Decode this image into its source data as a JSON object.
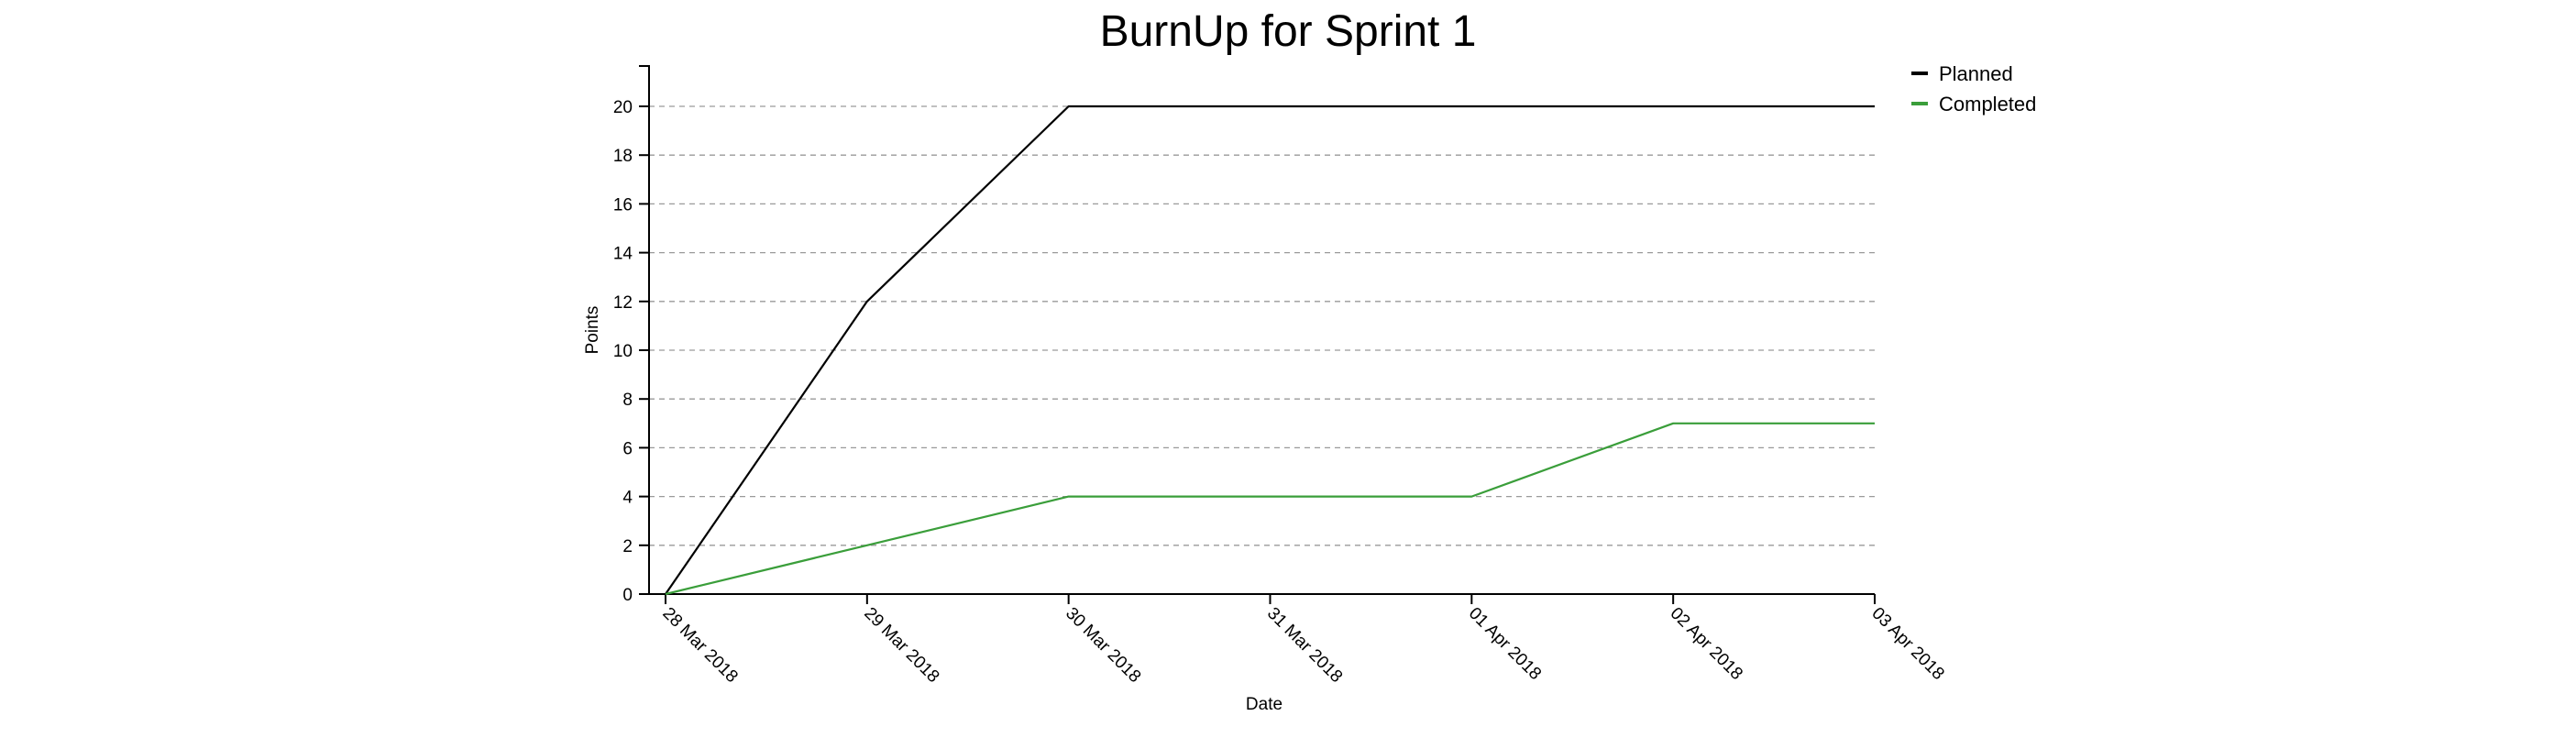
{
  "chart_data": {
    "type": "line",
    "title": "BurnUp for Sprint 1",
    "xlabel": "Date",
    "ylabel": "Points",
    "categories": [
      "28 Mar 2018",
      "29 Mar 2018",
      "30 Mar 2018",
      "31 Mar 2018",
      "01 Apr 2018",
      "02 Apr 2018",
      "03 Apr 2018"
    ],
    "series": [
      {
        "name": "Planned",
        "color": "#000000",
        "values": [
          0,
          12,
          20,
          20,
          20,
          20,
          20
        ]
      },
      {
        "name": "Completed",
        "color": "#3a9e3a",
        "values": [
          0,
          2,
          4,
          4,
          4,
          7,
          7
        ]
      }
    ],
    "yticks": [
      0,
      2,
      4,
      6,
      8,
      10,
      12,
      14,
      16,
      18,
      20
    ],
    "ylim": [
      0,
      21.6
    ],
    "grid": true,
    "legend_position": "top-right"
  }
}
